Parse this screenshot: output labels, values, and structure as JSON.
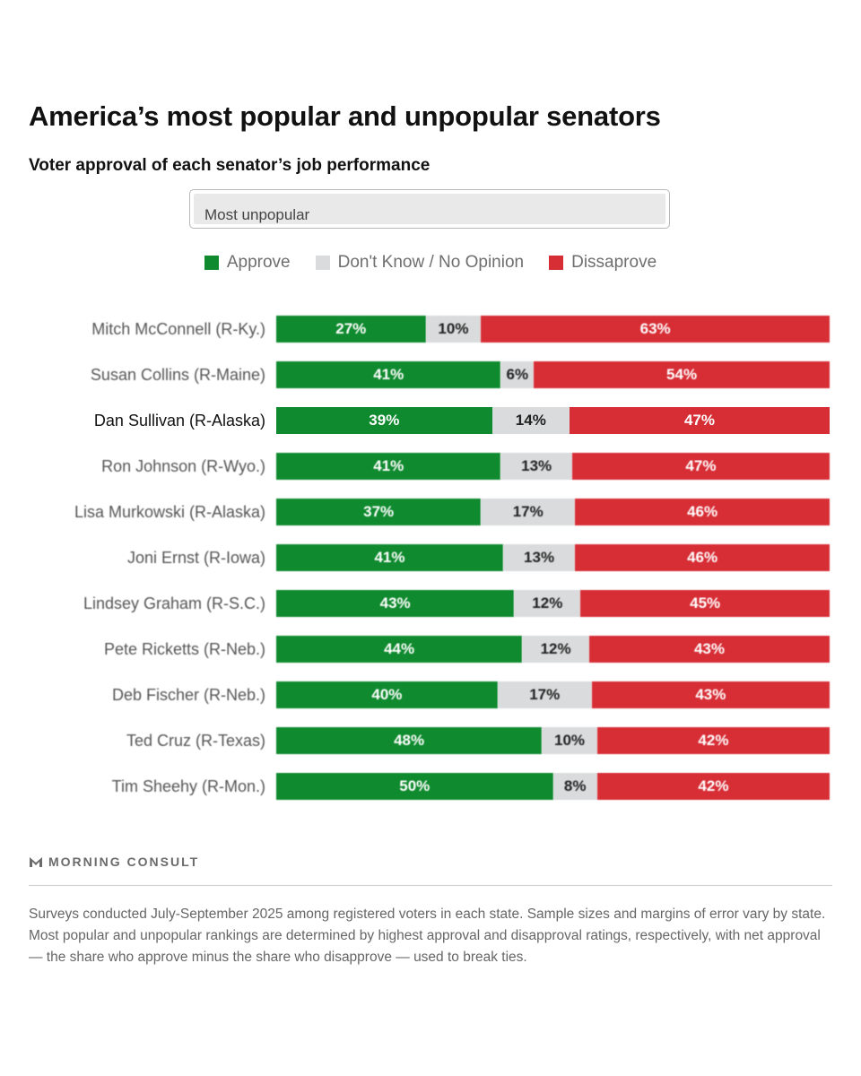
{
  "header": {
    "title": "America’s most popular and unpopular senators",
    "subtitle": "Voter approval of each senator’s job performance"
  },
  "filter": {
    "selected": "Most unpopular"
  },
  "colors": {
    "approve": "#0f8a2e",
    "neutral": "#d9dbdc",
    "disapprove": "#d72d35"
  },
  "chart_data": {
    "type": "bar",
    "orientation": "horizontal-stacked-100",
    "title": "America’s most popular and unpopular senators",
    "subtitle": "Voter approval of each senator’s job performance",
    "xlabel": "",
    "ylabel": "",
    "legend_position": "top-center",
    "legend": [
      "Approve",
      "Don't Know / No Opinion",
      "Dissaprove"
    ],
    "categories": [
      "Mitch McConnell (R-Ky.)",
      "Susan Collins (R-Maine)",
      "Dan Sullivan (R-Alaska)",
      "Ron Johnson (R-Wyo.)",
      "Lisa Murkowski (R-Alaska)",
      "Joni Ernst (R-Iowa)",
      "Lindsey Graham (R-S.C.)",
      "Pete Ricketts (R-Neb.)",
      "Deb Fischer (R-Neb.)",
      "Ted Cruz (R-Texas)",
      "Tim Sheehy (R-Mon.)"
    ],
    "highlighted_category": "Dan Sullivan (R-Alaska)",
    "series": [
      {
        "name": "Approve",
        "values": [
          27,
          41,
          39,
          41,
          37,
          41,
          43,
          44,
          40,
          48,
          50
        ]
      },
      {
        "name": "Don't Know / No Opinion",
        "values": [
          10,
          6,
          14,
          13,
          17,
          13,
          12,
          12,
          17,
          10,
          8
        ]
      },
      {
        "name": "Dissaprove",
        "values": [
          63,
          54,
          47,
          47,
          46,
          46,
          45,
          43,
          43,
          42,
          42
        ]
      }
    ],
    "value_suffix": "%",
    "xlim": [
      0,
      100
    ]
  },
  "branding": {
    "name": "MORNING CONSULT"
  },
  "footnote": "Surveys conducted July-September 2025 among registered voters in each state. Sample sizes and margins of error vary by state. Most popular and unpopular rankings are determined by highest approval and disapproval ratings, respectively, with net approval — the share who approve minus the share who disapprove — used to break ties."
}
